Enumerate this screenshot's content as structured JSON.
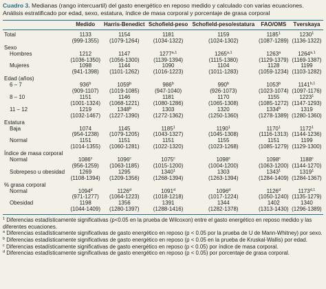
{
  "caption": {
    "label": "Cuadro 3.",
    "text": "Medianas (rango intercuartil) del gasto energético en reposo medido y calculado con varias ecuaciones. Análisis estratificado por edad, sexo, estatura, índice de masa corporal y porcentaje de grasa corporal"
  },
  "table": {
    "columns": [
      "Medido",
      "Harris-Benedict",
      "Schofield-peso",
      "Schofield-peso/estatura",
      "FAO/OMS",
      "Tverskaya"
    ],
    "rows": [
      {
        "label": "Total",
        "cells": [
          {
            "value": "1133",
            "range": "(999-1355)"
          },
          {
            "value": "1154",
            "range": "(1079-1264)"
          },
          {
            "value": "1181",
            "range": "(1034-1322)"
          },
          {
            "value": "1159",
            "range": "(1024-1302)"
          },
          {
            "value": "1185",
            "sup": "1",
            "range": "(1087-1289)"
          },
          {
            "value": "1230",
            "sup": "1",
            "range": "(1136-1322)"
          }
        ]
      },
      {
        "group": "Sexo"
      },
      {
        "label": "Hombres",
        "cells": [
          {
            "value": "1212",
            "range": "(1036-1350)"
          },
          {
            "value": "1147",
            "range": "(1056-1300)"
          },
          {
            "value": "1277",
            "sup": "a,1",
            "range": "(1139-1394)"
          },
          {
            "value": "1265",
            "sup": "a,1",
            "range": "(1115-1380)"
          },
          {
            "value": "1263",
            "sup": "a",
            "range": "(1129-1379)"
          },
          {
            "value": "1264",
            "sup": "a,1",
            "range": "(1169-1387)"
          }
        ]
      },
      {
        "label": "Mujeres",
        "cells": [
          {
            "value": "1098",
            "range": "(941-1398)"
          },
          {
            "value": "1144",
            "range": "(1101-1262)"
          },
          {
            "value": "1090",
            "range": "(1016-1223)"
          },
          {
            "value": "1104",
            "range": "(1011-1283)"
          },
          {
            "value": "1128",
            "range": "(1059-1234)"
          },
          {
            "value": "1199",
            "range": "(1103-1282)"
          }
        ]
      },
      {
        "group": "Edad (años)"
      },
      {
        "label": "6 – 7",
        "cells": [
          {
            "value": "936",
            "sup": "b",
            "range": "(909-1107)"
          },
          {
            "value": "1059",
            "sup": "b",
            "range": "(1019-1085)"
          },
          {
            "value": "986",
            "sup": "b",
            "range": "(947-1040)"
          },
          {
            "value": "990",
            "sup": "b",
            "range": "(926-1073)"
          },
          {
            "value": "1053",
            "sup": "b",
            "range": "(1023-1074)"
          },
          {
            "value": "1141",
            "sup": "b,1",
            "range": "(1097-1176)"
          }
        ]
      },
      {
        "label": "8 – 10",
        "cells": [
          {
            "value": "1151",
            "range": "(1001-1324)"
          },
          {
            "value": "1146",
            "range": "(1068-1221)"
          },
          {
            "value": "1181",
            "range": "(1080-1286)"
          },
          {
            "value": "1170",
            "range": "(1065-1308)"
          },
          {
            "value": "1155",
            "range": "(1085-1272)"
          },
          {
            "value": "1223",
            "sup": "1",
            "range": "(1147-1293)"
          }
        ]
      },
      {
        "label": "11 – 12",
        "cells": [
          {
            "value": "1219",
            "range": "(1032-1467)"
          },
          {
            "value": "1348",
            "sup": "b",
            "range": "(1227-1390)"
          },
          {
            "value": "1303",
            "range": "(1272-1362)"
          },
          {
            "value": "1320",
            "range": "(1250-1360)"
          },
          {
            "value": "1334",
            "sup": "b",
            "range": "(1278-1389)"
          },
          {
            "value": "1319",
            "range": "(1280-1360)"
          }
        ]
      },
      {
        "group": "Estatura"
      },
      {
        "label": "Baja",
        "cells": [
          {
            "value": "1074",
            "range": "(954-1238)"
          },
          {
            "value": "1145",
            "range": "(1079-1205)"
          },
          {
            "value": "1185",
            "sup": "1",
            "range": "(1043-1327)"
          },
          {
            "value": "1190",
            "sup": "1",
            "range": "(1045-1308)"
          },
          {
            "value": "1170",
            "sup": "1",
            "range": "(1116-1313)"
          },
          {
            "value": "1172",
            "sup": "1",
            "range": "(1144-1236)"
          }
        ]
      },
      {
        "label": "Normal",
        "cells": [
          {
            "value": "1151",
            "range": "(1014-1355)"
          },
          {
            "value": "1151",
            "range": "(1060-1281)"
          },
          {
            "value": "1151",
            "range": "(1022-1320)"
          },
          {
            "value": "1155",
            "range": "(1023-1268)"
          },
          {
            "value": "1151",
            "range": "(1085-1279)"
          },
          {
            "value": "1199",
            "range": "(1129-1300)"
          }
        ]
      },
      {
        "group": "Índice de masa corporal"
      },
      {
        "label": "Normal",
        "cells": [
          {
            "value": "1086",
            "sup": "c",
            "range": "(956-1259)"
          },
          {
            "value": "1096",
            "sup": "c",
            "range": "(1063-1185)"
          },
          {
            "value": "1075",
            "sup": "c",
            "range": "(1015-1200)"
          },
          {
            "value": "1098",
            "sup": "c",
            "range": "(1004-1200)"
          },
          {
            "value": "1098",
            "sup": "c",
            "range": "(1063-1200)"
          },
          {
            "value": "1188",
            "sup": "c",
            "range": "(1144-1270)"
          }
        ]
      },
      {
        "label": "Sobrepeso u obesidad",
        "cells": [
          {
            "value": "1269",
            "range": "(1108-1394)"
          },
          {
            "value": "1295",
            "range": "(1209-1356)"
          },
          {
            "value": "1340",
            "sup": "1",
            "range": "(1268-1394)"
          },
          {
            "value": "1303",
            "range": "(1263-1394)"
          },
          {
            "value": "1343",
            "sup": "1",
            "range": "(1284-1409)"
          },
          {
            "value": "1319",
            "sup": "1",
            "range": "(1284-1367)"
          }
        ]
      },
      {
        "group": "% grasa corporal"
      },
      {
        "label": "Normal",
        "cells": [
          {
            "value": "1094",
            "sup": "d",
            "range": "(971-1277)"
          },
          {
            "value": "1126",
            "sup": "d",
            "range": "(1064-1223)"
          },
          {
            "value": "1091",
            "sup": "d",
            "range": "(1018-1218)"
          },
          {
            "value": "1096",
            "sup": "d",
            "range": "(1017-1224)"
          },
          {
            "value": "1126",
            "sup": "d",
            "range": "(1050-1240)"
          },
          {
            "value": "1173",
            "sup": "d,1",
            "range": "(1135-1279)"
          }
        ]
      },
      {
        "label": "Obesidad",
        "cells": [
          {
            "value": "1198",
            "range": "(1044-1409)"
          },
          {
            "value": "1356",
            "range": "(1280-1397)"
          },
          {
            "value": "1391",
            "range": "(1288-1416)"
          },
          {
            "value": "1344",
            "range": "(1282-1378)"
          },
          {
            "value": "1402",
            "range": "(1313-1430)"
          },
          {
            "value": "1340",
            "range": "(1296-1389)"
          }
        ]
      }
    ]
  },
  "footnotes": [
    {
      "mark": "1",
      "text": "Diferencias estadísticamente significativas (p<0.05 en la prueba de Wilcoxon) entre el gasto energético en reposo medido y las diferentes ecuaciones."
    },
    {
      "mark": "a",
      "text": "Diferencias estadísticamente significativas de gasto energético en reposo (p < 0.05 por la prueba de U de Mann-Whitney) por sexo."
    },
    {
      "mark": "b",
      "text": "Diferencias estadísticamente significativas de gasto energético en reposo (p < 0.05 en la prueba de Kruskal-Wallis) por edad."
    },
    {
      "mark": "c",
      "text": "Diferencias estadísticamente significativas de gasto energético en reposo (p < 0.05) por índice de masa corporal."
    },
    {
      "mark": "d",
      "text": "Diferencias estadísticamente significativas de gasto energético en reposo (p < 0.05) por porcentaje de grasa corporal."
    }
  ]
}
